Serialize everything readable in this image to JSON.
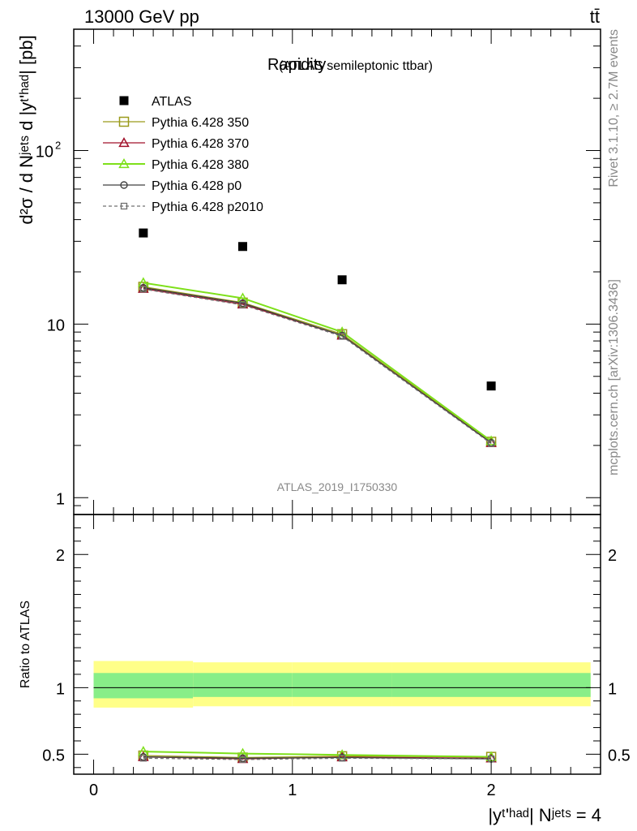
{
  "header": {
    "left": "13000 GeV pp",
    "right": "tt̄"
  },
  "side_labels": {
    "rivet": "Rivet 3.1.10, ≥ 2.7M events",
    "mcplots": "mcplots.cern.ch [arXiv:1306.3436]"
  },
  "chart_data": [
    {
      "type": "scatter",
      "title": "Rapidity",
      "subtitle": "(ATLAS semileptonic ttbar)",
      "watermark": "ATLAS_2019_I1750330",
      "ylabel": "d²σ / d Nʲᵉᵗˢ d |yᵗ'ʰᵃᵈ| [pb]",
      "y_scale": "log",
      "xlim": [
        -0.1,
        2.55
      ],
      "ylim": [
        0.8,
        500
      ],
      "y_ticks": [
        {
          "value": 1,
          "label": "1"
        },
        {
          "value": 10,
          "label": "10"
        },
        {
          "value": 100,
          "label": "10²"
        }
      ],
      "x": [
        0.25,
        0.75,
        1.25,
        2.0
      ],
      "legend_position": "top-left",
      "series": [
        {
          "name": "ATLAS",
          "color": "#000000",
          "marker": "filled-square",
          "values": [
            33.5,
            28.0,
            18.0,
            4.4
          ]
        },
        {
          "name": "Pythia 6.428 350",
          "color": "#9a9a1a",
          "marker": "open-square",
          "values": [
            16.4,
            13.3,
            8.75,
            2.1
          ]
        },
        {
          "name": "Pythia 6.428 370",
          "color": "#a0102a",
          "marker": "open-triangle",
          "values": [
            16.0,
            13.0,
            8.6,
            2.07
          ]
        },
        {
          "name": "Pythia 6.428 380",
          "color": "#7ee01a",
          "marker": "open-triangle",
          "values": [
            17.3,
            14.1,
            9.0,
            2.12
          ]
        },
        {
          "name": "Pythia 6.428 p0",
          "color": "#404040",
          "marker": "open-circle",
          "values": [
            16.2,
            13.2,
            8.6,
            2.07
          ]
        },
        {
          "name": "Pythia 6.428 p2010",
          "color": "#707070",
          "marker": "open-square-small",
          "dashed": true,
          "values": [
            15.9,
            12.9,
            8.5,
            2.05
          ]
        }
      ]
    },
    {
      "type": "line",
      "ylabel": "Ratio to ATLAS",
      "xlabel": "|yᵗ'ʰᵃᵈ| Nʲᵉᵗˢ = 4",
      "xlim": [
        -0.1,
        2.55
      ],
      "ylim": [
        0.35,
        2.3
      ],
      "x_ticks": [
        {
          "value": 0,
          "label": "0"
        },
        {
          "value": 1,
          "label": "1"
        },
        {
          "value": 2,
          "label": "2"
        }
      ],
      "y_ticks": [
        {
          "value": 0.5,
          "label": "0.5"
        },
        {
          "value": 1,
          "label": "1"
        },
        {
          "value": 2,
          "label": "2"
        }
      ],
      "bands": {
        "bins": [
          [
            0,
            0.5
          ],
          [
            0.5,
            1.0
          ],
          [
            1.0,
            1.5
          ],
          [
            1.5,
            2.5
          ]
        ],
        "total": [
          [
            0.85,
            1.2
          ],
          [
            0.86,
            1.19
          ],
          [
            0.86,
            1.19
          ],
          [
            0.86,
            1.19
          ]
        ],
        "stat": [
          [
            0.92,
            1.11
          ],
          [
            0.93,
            1.11
          ],
          [
            0.93,
            1.11
          ],
          [
            0.93,
            1.11
          ]
        ],
        "total_color": "#ffff88",
        "stat_color": "#88ee88"
      },
      "x": [
        0.25,
        0.75,
        1.25,
        2.0
      ],
      "series": [
        {
          "name": "Pythia 6.428 350",
          "values": [
            0.49,
            0.475,
            0.485,
            0.48
          ]
        },
        {
          "name": "Pythia 6.428 370",
          "values": [
            0.48,
            0.465,
            0.478,
            0.47
          ]
        },
        {
          "name": "Pythia 6.428 380",
          "values": [
            0.52,
            0.505,
            0.495,
            0.48
          ]
        },
        {
          "name": "Pythia 6.428 p0",
          "values": [
            0.48,
            0.47,
            0.475,
            0.465
          ]
        },
        {
          "name": "Pythia 6.428 p2010",
          "values": [
            0.47,
            0.46,
            0.47,
            0.465
          ]
        }
      ]
    }
  ]
}
